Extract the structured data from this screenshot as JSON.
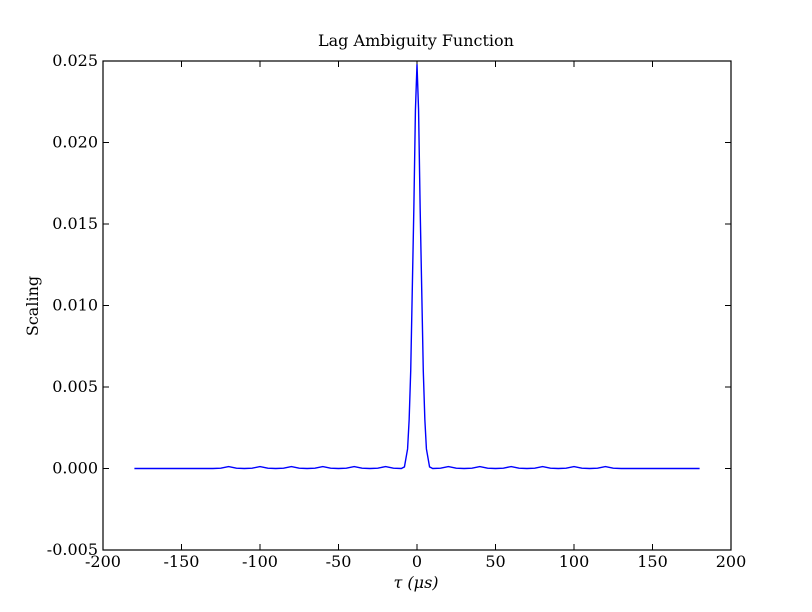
{
  "chart_data": {
    "type": "line",
    "title": "Lag Ambiguity Function",
    "xlabel": "τ (μs)",
    "ylabel": "Scaling",
    "xlim": [
      -200,
      200
    ],
    "ylim": [
      -0.005,
      0.025
    ],
    "x_ticks": [
      -200,
      -150,
      -100,
      -50,
      0,
      50,
      100,
      150,
      200
    ],
    "x_tick_labels": [
      "-200",
      "-150",
      "-100",
      "-50",
      "0",
      "50",
      "100",
      "150",
      "200"
    ],
    "y_ticks": [
      -0.005,
      0.0,
      0.005,
      0.01,
      0.015,
      0.02,
      0.025
    ],
    "y_tick_labels": [
      "-0.005",
      "0.000",
      "0.005",
      "0.010",
      "0.015",
      "0.020",
      "0.025"
    ],
    "grid": false,
    "legend": "none",
    "series": [
      {
        "color": "#0000ff",
        "x": [
          -180,
          -130,
          -125,
          -120,
          -115,
          -110,
          -105,
          -100,
          -95,
          -90,
          -85,
          -80,
          -75,
          -70,
          -65,
          -60,
          -55,
          -50,
          -45,
          -40,
          -35,
          -30,
          -25,
          -20,
          -15,
          -10,
          -8,
          -6,
          -5,
          -4,
          -3,
          -2,
          -1,
          0,
          1,
          2,
          3,
          4,
          5,
          6,
          8,
          10,
          15,
          20,
          25,
          30,
          35,
          40,
          45,
          50,
          55,
          60,
          65,
          70,
          75,
          80,
          85,
          90,
          95,
          100,
          105,
          110,
          115,
          120,
          125,
          130,
          180
        ],
        "y": [
          0.0,
          0.0,
          2e-05,
          0.00012,
          2e-05,
          0.0,
          2e-05,
          0.00012,
          2e-05,
          0.0,
          2e-05,
          0.00012,
          2e-05,
          0.0,
          2e-05,
          0.00012,
          2e-05,
          0.0,
          2e-05,
          0.00012,
          2e-05,
          0.0,
          2e-05,
          0.00012,
          2e-05,
          0.0,
          0.0001,
          0.0012,
          0.003,
          0.006,
          0.011,
          0.016,
          0.022,
          0.0248,
          0.022,
          0.016,
          0.011,
          0.006,
          0.003,
          0.0012,
          0.0001,
          0.0,
          2e-05,
          0.00012,
          2e-05,
          0.0,
          2e-05,
          0.00012,
          2e-05,
          0.0,
          2e-05,
          0.00012,
          2e-05,
          0.0,
          2e-05,
          0.00012,
          2e-05,
          0.0,
          2e-05,
          0.00012,
          2e-05,
          0.0,
          2e-05,
          0.00012,
          2e-05,
          0.0,
          0.0
        ]
      }
    ]
  }
}
